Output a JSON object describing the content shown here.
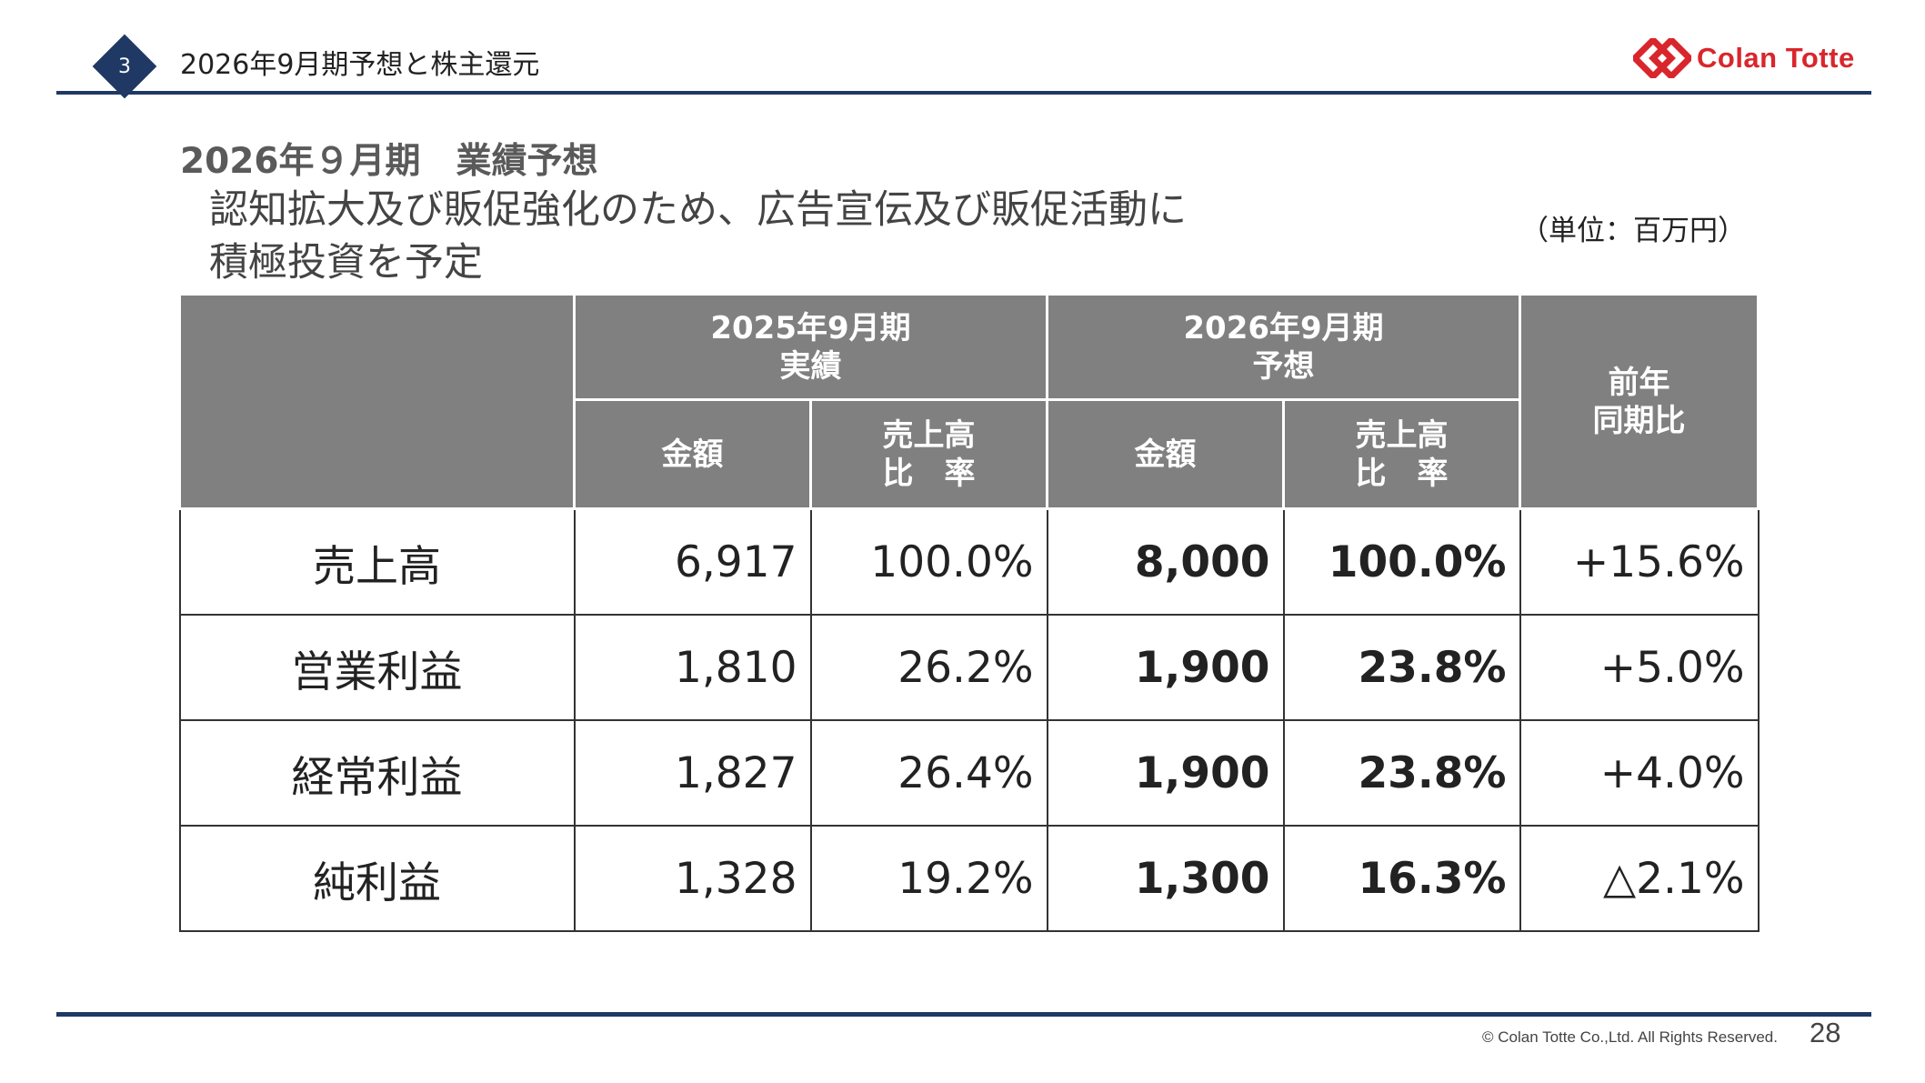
{
  "header": {
    "section_number": "3",
    "title": "2026年9月期予想と株主還元",
    "logo_text": "Colan Totte",
    "brand_color": "#d9262c",
    "accent_color": "#1f3864"
  },
  "main": {
    "heading": "2026年９月期　業績予想",
    "subtitle_line1": "認知拡大及び販促強化のため、広告宣伝及び販促活動に",
    "subtitle_line2": "積極投資を予定",
    "unit_note": "（単位：百万円）"
  },
  "table": {
    "header_bg": "#808080",
    "group_2025": "2025年9月期",
    "group_2025_sub": "実績",
    "group_2026": "2026年9月期",
    "group_2026_sub": "予想",
    "yoy_line1": "前年",
    "yoy_line2": "同期比",
    "col_amount": "金額",
    "col_ratio_line1": "売上高",
    "col_ratio_line2": "比　率",
    "rows": [
      {
        "label": "売上高",
        "a2025": "6,917",
        "r2025": "100.0%",
        "a2026": "8,000",
        "r2026": "100.0%",
        "yoy": "+15.6%"
      },
      {
        "label": "営業利益",
        "a2025": "1,810",
        "r2025": "26.2%",
        "a2026": "1,900",
        "r2026": "23.8%",
        "yoy": "+5.0%"
      },
      {
        "label": "経常利益",
        "a2025": "1,827",
        "r2025": "26.4%",
        "a2026": "1,900",
        "r2026": "23.8%",
        "yoy": "+4.0%"
      },
      {
        "label": "純利益",
        "a2025": "1,328",
        "r2025": "19.2%",
        "a2026": "1,300",
        "r2026": "16.3%",
        "yoy": "△2.1%"
      }
    ]
  },
  "footer": {
    "copyright": "© Colan Totte Co.,Ltd. All Rights Reserved.",
    "page_number": "28"
  }
}
